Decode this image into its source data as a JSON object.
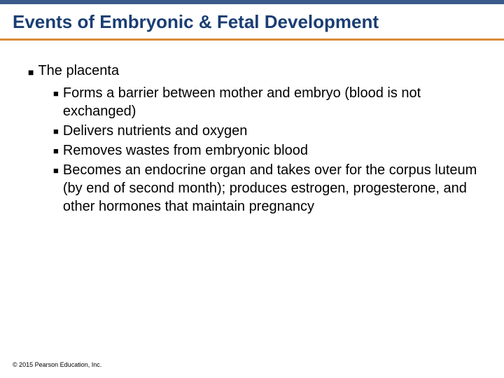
{
  "colors": {
    "top_bar": "#3b5b8c",
    "title_text": "#1a3e73",
    "accent_line": "#d98b3a",
    "body_text": "#000000",
    "background": "#ffffff"
  },
  "typography": {
    "title_fontsize": 26,
    "body_fontsize": 20,
    "copyright_fontsize": 9,
    "font_family": "Arial"
  },
  "title": "Events of Embryonic & Fetal Development",
  "main": {
    "heading": "The placenta",
    "items": [
      "Forms a barrier between mother and embryo (blood is not exchanged)",
      "Delivers nutrients and oxygen",
      "Removes wastes from embryonic blood",
      "Becomes an endocrine organ and takes over for the corpus luteum (by end of second month); produces estrogen, progesterone, and other hormones that maintain pregnancy"
    ]
  },
  "copyright": "© 2015 Pearson Education, Inc."
}
